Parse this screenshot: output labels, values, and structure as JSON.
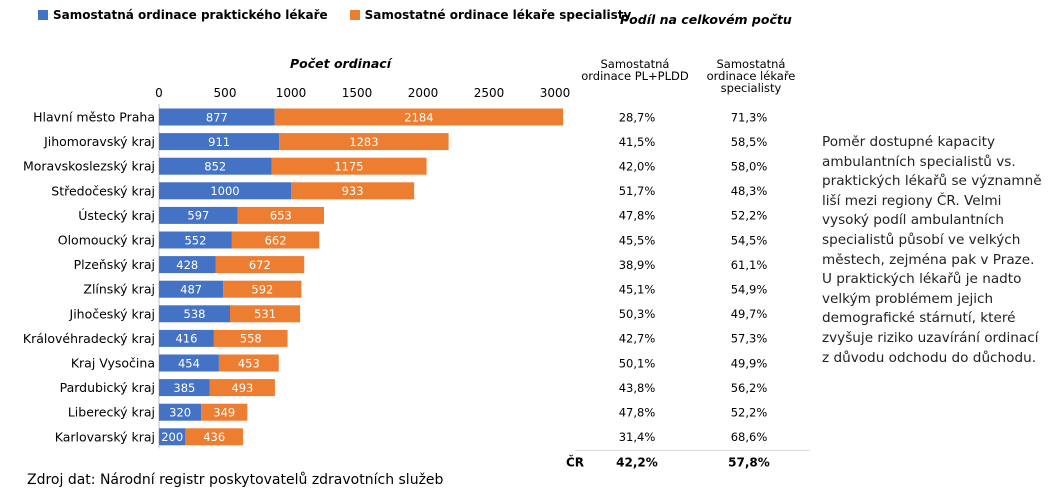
{
  "colors": {
    "pl": "#4472C4",
    "spec": "#ED7D31"
  },
  "legend": {
    "pl": "Samostatná ordinace praktického lékaře",
    "spec": "Samostatné ordinace lékaře specialisty"
  },
  "share_title": "Podíl na celkovém počtu",
  "col_pl": "Samostatná ordinace PL+PLDD",
  "col_spec": "Samostatná ordinace lékaře specialisty",
  "total": {
    "label": "ČR",
    "pl": "42,2%",
    "spec": "57,8%"
  },
  "note": "Poměr dostupné kapacity ambulantních specialistů vs. praktických lékařů se významně liší mezi regiony ČR. Velmi vysoký podíl ambulantních specialistů působí ve velkých městech, zejména pak v Praze. U praktických lékařů je nadto velkým problémem jejich demografické stárnutí, které zvyšuje riziko uzavírání ordinací z důvodu odchodu do důchodu.",
  "source": "Zdroj dat: Národní registr poskytovatelů zdravotních služeb",
  "chart_data": {
    "type": "bar",
    "orientation": "horizontal",
    "stacked": true,
    "xlabel": "Počet ordinací",
    "xlim": [
      0,
      3000
    ],
    "xticks": [
      "0",
      "500",
      "1000",
      "1500",
      "2000",
      "2500",
      "3000"
    ],
    "categories": [
      "Hlavní město Praha",
      "Jihomoravský kraj",
      "Moravskoslezský kraj",
      "Středočeský kraj",
      "Ústecký kraj",
      "Olomoucký kraj",
      "Plzeňský kraj",
      "Zlínský kraj",
      "Jihočeský kraj",
      "Královéhradecký kraj",
      "Kraj Vysočina",
      "Pardubický kraj",
      "Liberecký kraj",
      "Karlovarský kraj"
    ],
    "series": [
      {
        "name": "Samostatná ordinace praktického lékaře",
        "values": [
          877,
          911,
          852,
          1000,
          597,
          552,
          428,
          487,
          538,
          416,
          454,
          385,
          320,
          200
        ]
      },
      {
        "name": "Samostatné ordinace lékaře specialisty",
        "values": [
          2184,
          1283,
          1175,
          933,
          653,
          662,
          672,
          592,
          531,
          558,
          453,
          493,
          349,
          436
        ]
      }
    ],
    "share_pl": [
      "28,7%",
      "41,5%",
      "42,0%",
      "51,7%",
      "47,8%",
      "45,5%",
      "38,9%",
      "45,1%",
      "50,3%",
      "42,7%",
      "50,1%",
      "43,8%",
      "47,8%",
      "31,4%"
    ],
    "share_spec": [
      "71,3%",
      "58,5%",
      "58,0%",
      "48,3%",
      "52,2%",
      "54,5%",
      "61,1%",
      "54,9%",
      "49,7%",
      "57,3%",
      "49,9%",
      "56,2%",
      "52,2%",
      "68,6%"
    ]
  }
}
